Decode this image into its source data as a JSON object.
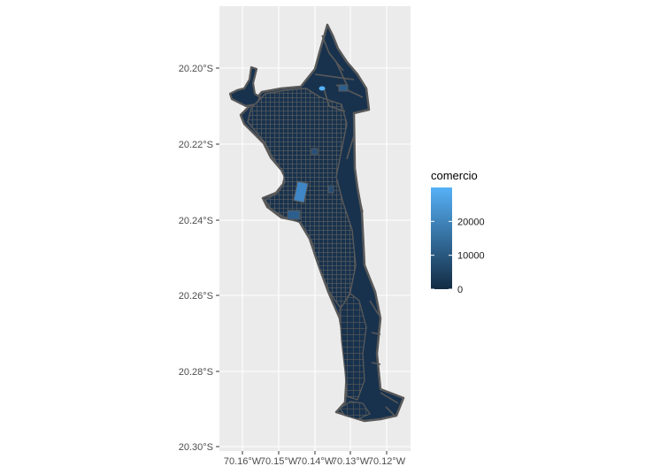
{
  "map": {
    "y_labels": [
      "20.20°S",
      "20.22°S",
      "20.24°S",
      "20.26°S",
      "20.28°S",
      "20.30°S"
    ],
    "x_labels": [
      "70.16°W",
      "70.15°W",
      "70.14°W",
      "70.13°W",
      "70.12°W"
    ],
    "legend": {
      "title": "comercio",
      "labels": [
        "20000",
        "10000",
        "0"
      ],
      "values": [
        20000,
        10000,
        0
      ],
      "max": 30000,
      "color_low": "#132B43",
      "color_high": "#56B1F7"
    },
    "colors": {
      "panel": "#ebebeb",
      "grid": "#ffffff",
      "polygon_fill": "#18324d",
      "polygon_border": "#595959"
    }
  }
}
